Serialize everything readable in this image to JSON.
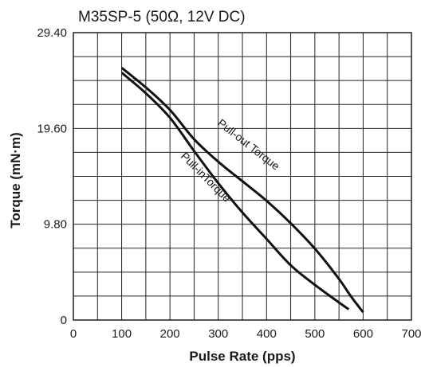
{
  "chart_data": {
    "type": "line",
    "title": "M35SP-5 (50Ω, 12V DC)",
    "xlabel": "Pulse Rate (pps)",
    "ylabel": "Torque (mN·m)",
    "xlim": [
      0,
      700
    ],
    "ylim": [
      0,
      29.4
    ],
    "x_ticks": [
      "0",
      "100",
      "200",
      "300",
      "400",
      "500",
      "600",
      "700"
    ],
    "y_ticks": [
      {
        "value": 0,
        "label": "0"
      },
      {
        "value": 9.8,
        "label": "9.80"
      },
      {
        "value": 19.6,
        "label": "19.60"
      },
      {
        "value": 29.4,
        "label": "29.40"
      }
    ],
    "grid": true,
    "grid_columns": 14,
    "grid_rows": 12,
    "series": [
      {
        "name": "Pull-out Torque",
        "color": "#111111",
        "x": [
          100,
          150,
          200,
          250,
          300,
          350,
          400,
          450,
          500,
          550,
          575,
          600
        ],
        "y": [
          25.8,
          23.8,
          21.5,
          18.5,
          16.2,
          14.2,
          12.2,
          9.9,
          7.3,
          4.2,
          2.4,
          0.8
        ]
      },
      {
        "name": "Pull-inTorque",
        "color": "#111111",
        "x": [
          100,
          150,
          200,
          250,
          300,
          350,
          400,
          450,
          500,
          550,
          570
        ],
        "y": [
          25.3,
          23.2,
          20.7,
          17.3,
          14.0,
          11.0,
          8.3,
          5.6,
          3.6,
          1.8,
          1.1
        ]
      }
    ]
  }
}
